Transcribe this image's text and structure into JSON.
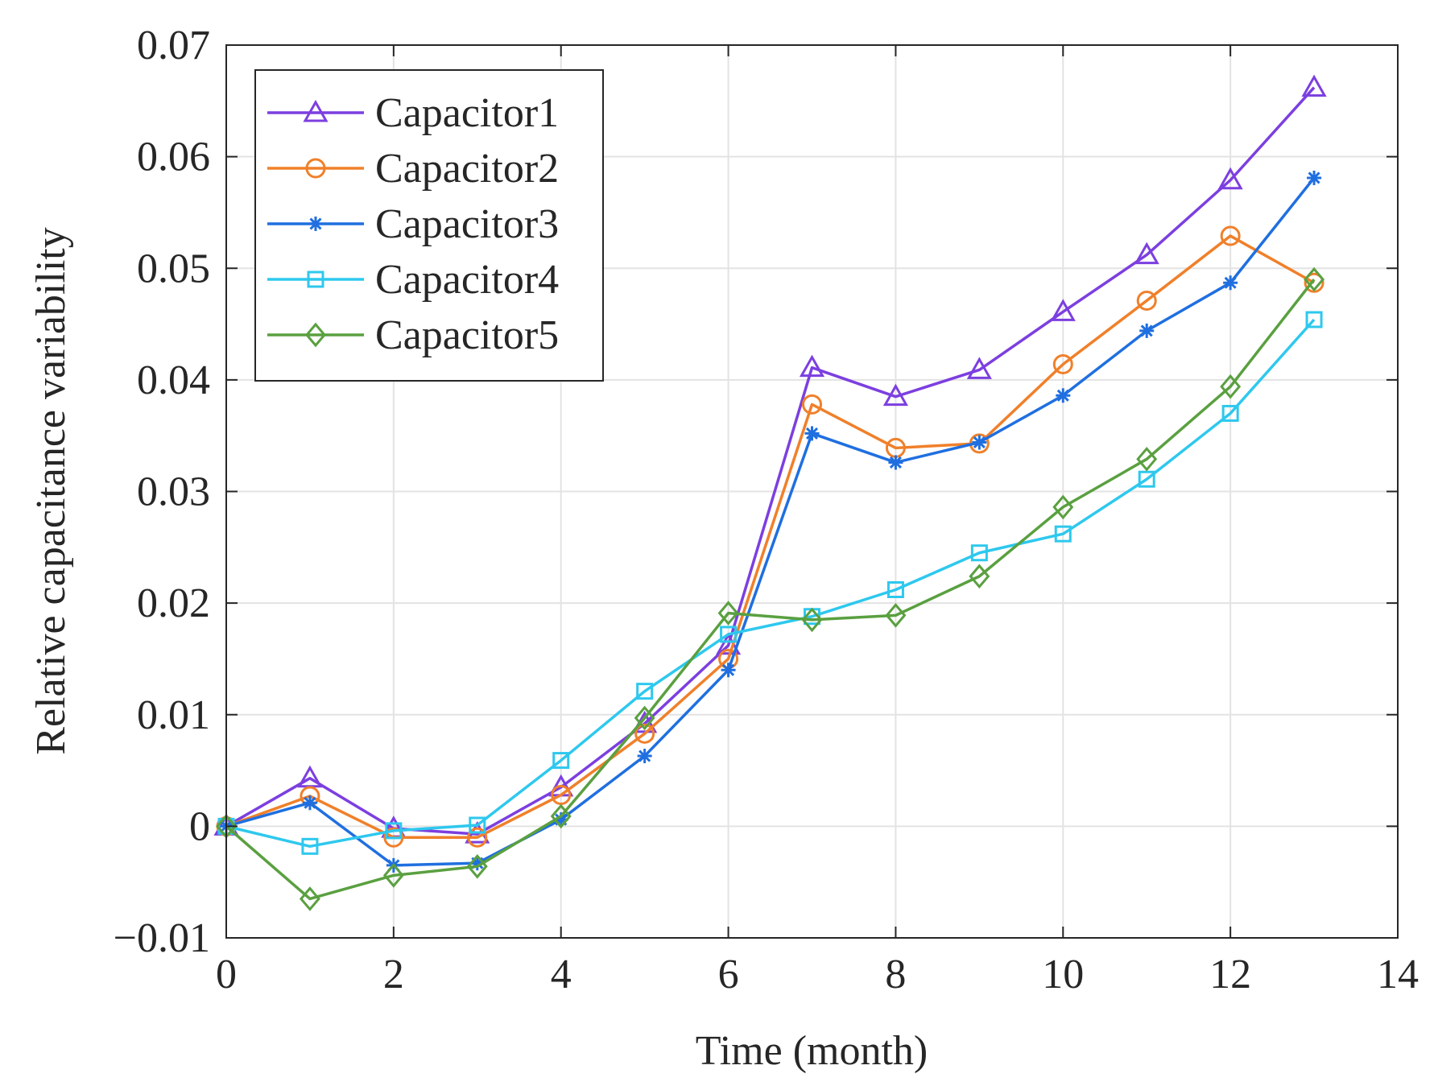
{
  "chart_data": {
    "type": "line",
    "title": "",
    "xlabel": "Time (month)",
    "ylabel": "Relative capacitance variability",
    "xlim": [
      0,
      14
    ],
    "ylim": [
      -0.01,
      0.07
    ],
    "xticks": [
      0,
      2,
      4,
      6,
      8,
      10,
      12,
      14
    ],
    "xtick_labels": [
      "0",
      "2",
      "4",
      "6",
      "8",
      "10",
      "12",
      "14"
    ],
    "yticks": [
      -0.01,
      0,
      0.01,
      0.02,
      0.03,
      0.04,
      0.05,
      0.06,
      0.07
    ],
    "ytick_labels": [
      "−0.01",
      "0",
      "0.01",
      "0.02",
      "0.03",
      "0.04",
      "0.05",
      "0.06",
      "0.07"
    ],
    "grid": true,
    "legend_position": "top-left",
    "x": [
      0,
      1,
      2,
      3,
      4,
      5,
      6,
      7,
      8,
      9,
      10,
      11,
      12,
      13
    ],
    "series": [
      {
        "name": "Capacitor1",
        "color": "#7c3fe0",
        "marker": "triangle",
        "values": [
          0,
          0.0043,
          -0.0002,
          -0.0007,
          0.0035,
          0.0092,
          0.0162,
          0.0411,
          0.0385,
          0.0409,
          0.0461,
          0.0512,
          0.0579,
          0.0662
        ]
      },
      {
        "name": "Capacitor2",
        "color": "#f0802a",
        "marker": "circle",
        "values": [
          0,
          0.0027,
          -0.001,
          -0.001,
          0.0028,
          0.0083,
          0.015,
          0.0378,
          0.0339,
          0.0343,
          0.0414,
          0.0471,
          0.0529,
          0.0487
        ]
      },
      {
        "name": "Capacitor3",
        "color": "#1f6fe0",
        "marker": "asterisk",
        "values": [
          0,
          0.0021,
          -0.0035,
          -0.0033,
          0.0006,
          0.0063,
          0.014,
          0.0352,
          0.0326,
          0.0344,
          0.0386,
          0.0444,
          0.0487,
          0.0581
        ]
      },
      {
        "name": "Capacitor4",
        "color": "#2ec8ee",
        "marker": "square",
        "values": [
          0,
          -0.0018,
          -0.0004,
          0.0001,
          0.0059,
          0.0121,
          0.0172,
          0.0188,
          0.0212,
          0.0245,
          0.0262,
          0.0311,
          0.037,
          0.0454
        ]
      },
      {
        "name": "Capacitor5",
        "color": "#5aa040",
        "marker": "diamond",
        "values": [
          0,
          -0.0065,
          -0.0044,
          -0.0036,
          0.0009,
          0.0097,
          0.0191,
          0.0185,
          0.0189,
          0.0224,
          0.0286,
          0.0329,
          0.0394,
          0.049
        ]
      }
    ]
  }
}
